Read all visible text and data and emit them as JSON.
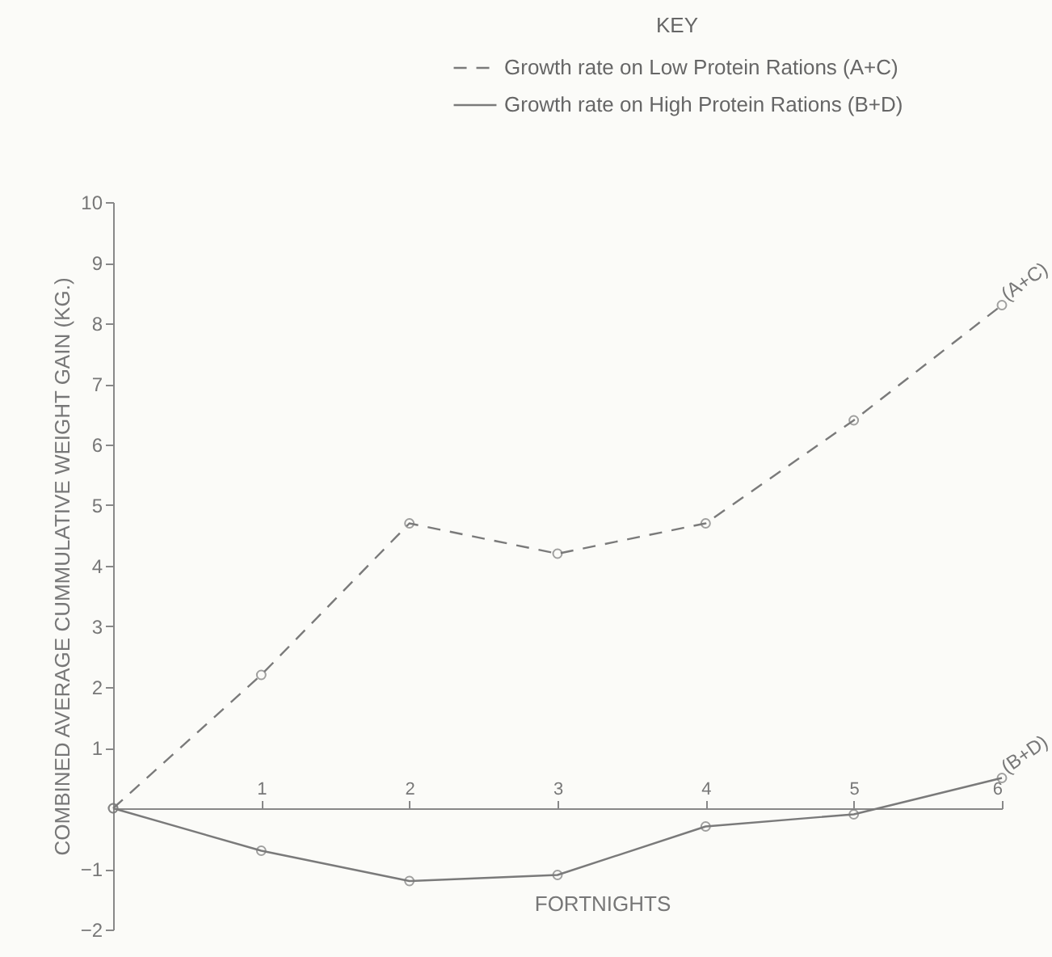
{
  "chart_data": {
    "type": "line",
    "xlabel": "FORTNIGHTS",
    "ylabel": "COMBINED AVERAGE CUMMULATIVE WEIGHT GAIN (KG.)",
    "legend_title": "KEY",
    "x": [
      0,
      1,
      2,
      3,
      4,
      5,
      6
    ],
    "series": [
      {
        "name": "Growth rate on Low Protein Rations (A+C)",
        "color": "#7a7a7a",
        "line_style": "dashed",
        "values": [
          0,
          2.2,
          4.7,
          4.2,
          4.7,
          6.4,
          8.3
        ]
      },
      {
        "name": "Growth rate on High Protein Rations (B+D)",
        "color": "#7a7a7a",
        "line_style": "solid",
        "values": [
          0,
          -0.7,
          -1.2,
          -1.1,
          -0.3,
          -0.1,
          0.5
        ]
      }
    ],
    "annotations": [
      {
        "text": "(A+C)",
        "x": 6,
        "y": 8.3
      },
      {
        "text": "(B+D)",
        "x": 6,
        "y": 0.5
      }
    ],
    "xlim": [
      0,
      6
    ],
    "xticks": [
      1,
      2,
      3,
      4,
      5,
      6
    ],
    "ylim": [
      -2,
      10
    ],
    "yticks": [
      -2,
      -1,
      1,
      2,
      3,
      4,
      5,
      6,
      7,
      8,
      9,
      10
    ],
    "grid": false,
    "legend": "top right",
    "marker": "circle"
  }
}
